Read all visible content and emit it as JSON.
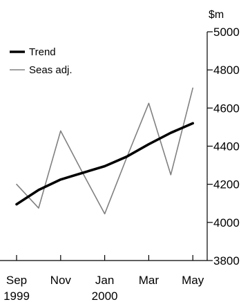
{
  "chart_data": {
    "type": "line",
    "title": "",
    "xlabel": "",
    "ylabel": "$m",
    "x": [
      "1999-09",
      "1999-10",
      "1999-11",
      "1999-12",
      "2000-01",
      "2000-02",
      "2000-03",
      "2000-04",
      "2000-05"
    ],
    "x_tick_labels": [
      {
        "month": "Sep",
        "year": "1999"
      },
      {
        "month": "Nov",
        "year": ""
      },
      {
        "month": "Jan",
        "year": "2000"
      },
      {
        "month": "Mar",
        "year": ""
      },
      {
        "month": "May",
        "year": ""
      }
    ],
    "x_tick_months": [
      "1999-09",
      "1999-11",
      "2000-01",
      "2000-03",
      "2000-05"
    ],
    "ylim": [
      3800,
      5000
    ],
    "y_ticks": [
      3800,
      4000,
      4200,
      4400,
      4600,
      4800,
      5000
    ],
    "y_axis_position": "right",
    "grid": false,
    "legend_position": "top-left",
    "series": [
      {
        "name": "Trend",
        "color": "#000000",
        "values": [
          4095,
          4170,
          4225,
          4260,
          4295,
          4345,
          4410,
          4470,
          4520
        ]
      },
      {
        "name": "Seas adj.",
        "color": "#808080",
        "values": [
          4200,
          4075,
          4480,
          4260,
          4045,
          4340,
          4625,
          4250,
          4705
        ]
      }
    ]
  }
}
